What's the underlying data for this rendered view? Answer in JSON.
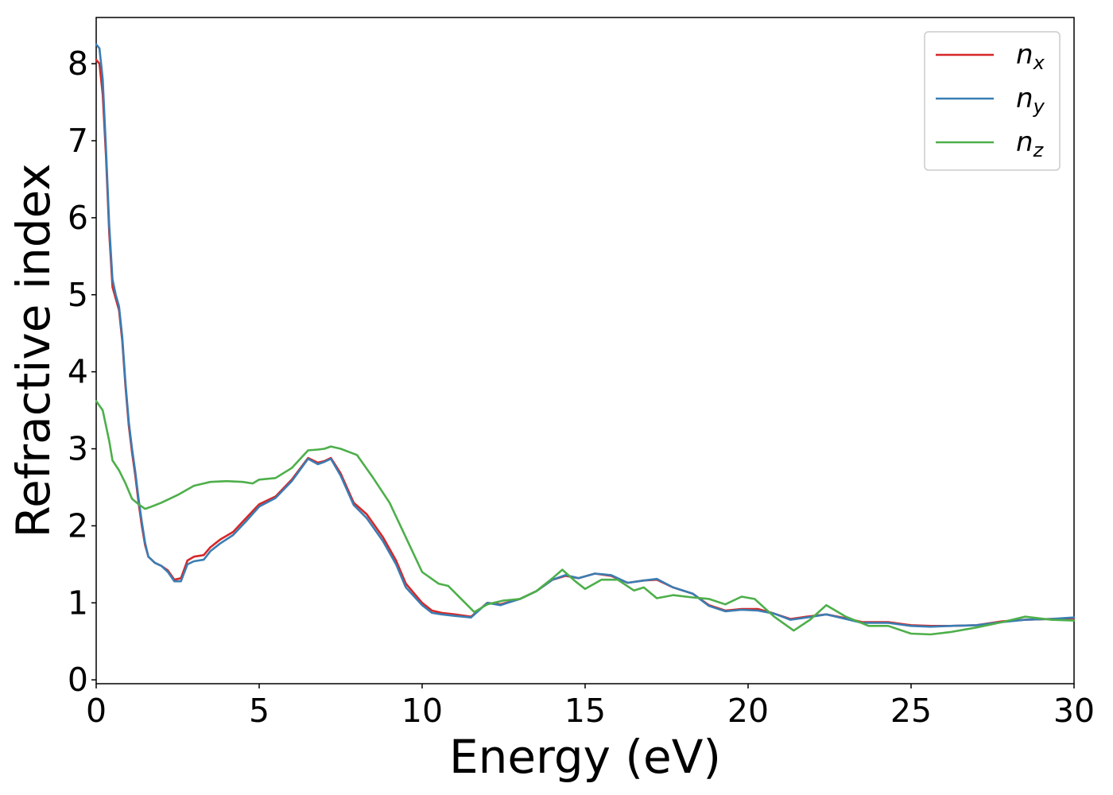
{
  "chart_data": {
    "type": "line",
    "title": "",
    "xlabel": "Energy (eV)",
    "ylabel": "Refractive index",
    "xlim": [
      0,
      30
    ],
    "ylim": [
      -0.05,
      8.6
    ],
    "xticks": [
      0,
      5,
      10,
      15,
      20,
      25,
      30
    ],
    "yticks": [
      0,
      1,
      2,
      3,
      4,
      5,
      6,
      7,
      8
    ],
    "grid": false,
    "legend_position": "top-right",
    "series": [
      {
        "name": "n",
        "subscript": "x",
        "color": "#d62728",
        "points": [
          [
            0,
            8.05
          ],
          [
            0.1,
            8.0
          ],
          [
            0.2,
            7.6
          ],
          [
            0.3,
            6.8
          ],
          [
            0.4,
            5.8
          ],
          [
            0.5,
            5.1
          ],
          [
            0.6,
            4.95
          ],
          [
            0.7,
            4.8
          ],
          [
            0.8,
            4.4
          ],
          [
            0.9,
            3.8
          ],
          [
            1.0,
            3.3
          ],
          [
            1.1,
            2.95
          ],
          [
            1.2,
            2.65
          ],
          [
            1.3,
            2.3
          ],
          [
            1.4,
            2.0
          ],
          [
            1.5,
            1.75
          ],
          [
            1.6,
            1.6
          ],
          [
            1.8,
            1.52
          ],
          [
            2.0,
            1.48
          ],
          [
            2.2,
            1.42
          ],
          [
            2.4,
            1.3
          ],
          [
            2.6,
            1.32
          ],
          [
            2.8,
            1.55
          ],
          [
            3.0,
            1.6
          ],
          [
            3.3,
            1.62
          ],
          [
            3.5,
            1.72
          ],
          [
            3.8,
            1.82
          ],
          [
            4.2,
            1.92
          ],
          [
            4.6,
            2.1
          ],
          [
            5.0,
            2.28
          ],
          [
            5.5,
            2.38
          ],
          [
            6.0,
            2.6
          ],
          [
            6.5,
            2.88
          ],
          [
            6.8,
            2.82
          ],
          [
            7.0,
            2.84
          ],
          [
            7.2,
            2.88
          ],
          [
            7.5,
            2.68
          ],
          [
            7.9,
            2.3
          ],
          [
            8.3,
            2.15
          ],
          [
            8.8,
            1.85
          ],
          [
            9.2,
            1.55
          ],
          [
            9.5,
            1.25
          ],
          [
            10.0,
            1.0
          ],
          [
            10.3,
            0.9
          ],
          [
            10.6,
            0.87
          ],
          [
            11.0,
            0.85
          ],
          [
            11.5,
            0.82
          ],
          [
            12.0,
            1.0
          ],
          [
            12.4,
            0.98
          ],
          [
            13.0,
            1.05
          ],
          [
            13.5,
            1.15
          ],
          [
            14.0,
            1.3
          ],
          [
            14.4,
            1.35
          ],
          [
            14.8,
            1.32
          ],
          [
            15.3,
            1.38
          ],
          [
            15.8,
            1.35
          ],
          [
            16.3,
            1.26
          ],
          [
            16.8,
            1.29
          ],
          [
            17.2,
            1.3
          ],
          [
            17.7,
            1.2
          ],
          [
            18.3,
            1.12
          ],
          [
            18.8,
            0.97
          ],
          [
            19.3,
            0.9
          ],
          [
            19.8,
            0.92
          ],
          [
            20.3,
            0.92
          ],
          [
            20.8,
            0.86
          ],
          [
            21.3,
            0.79
          ],
          [
            21.8,
            0.82
          ],
          [
            22.4,
            0.85
          ],
          [
            23.0,
            0.8
          ],
          [
            23.5,
            0.75
          ],
          [
            24.3,
            0.75
          ],
          [
            25.0,
            0.71
          ],
          [
            25.6,
            0.7
          ],
          [
            26.2,
            0.7
          ],
          [
            27.0,
            0.71
          ],
          [
            27.8,
            0.76
          ],
          [
            28.5,
            0.78
          ],
          [
            29.3,
            0.79
          ],
          [
            30.0,
            0.8
          ]
        ]
      },
      {
        "name": "n",
        "subscript": "y",
        "color": "#3a7db3",
        "points": [
          [
            0,
            8.25
          ],
          [
            0.1,
            8.2
          ],
          [
            0.2,
            7.8
          ],
          [
            0.3,
            6.9
          ],
          [
            0.4,
            5.9
          ],
          [
            0.5,
            5.2
          ],
          [
            0.6,
            5.0
          ],
          [
            0.7,
            4.85
          ],
          [
            0.8,
            4.45
          ],
          [
            0.9,
            3.85
          ],
          [
            1.0,
            3.35
          ],
          [
            1.1,
            3.0
          ],
          [
            1.2,
            2.7
          ],
          [
            1.3,
            2.35
          ],
          [
            1.4,
            2.05
          ],
          [
            1.5,
            1.78
          ],
          [
            1.6,
            1.6
          ],
          [
            1.8,
            1.52
          ],
          [
            2.0,
            1.48
          ],
          [
            2.2,
            1.4
          ],
          [
            2.4,
            1.28
          ],
          [
            2.6,
            1.28
          ],
          [
            2.8,
            1.5
          ],
          [
            3.0,
            1.54
          ],
          [
            3.3,
            1.56
          ],
          [
            3.5,
            1.67
          ],
          [
            3.8,
            1.77
          ],
          [
            4.2,
            1.88
          ],
          [
            4.6,
            2.06
          ],
          [
            5.0,
            2.25
          ],
          [
            5.5,
            2.36
          ],
          [
            6.0,
            2.58
          ],
          [
            6.5,
            2.87
          ],
          [
            6.8,
            2.8
          ],
          [
            7.0,
            2.83
          ],
          [
            7.2,
            2.87
          ],
          [
            7.5,
            2.65
          ],
          [
            7.9,
            2.27
          ],
          [
            8.3,
            2.1
          ],
          [
            8.8,
            1.8
          ],
          [
            9.2,
            1.5
          ],
          [
            9.5,
            1.2
          ],
          [
            10.0,
            0.97
          ],
          [
            10.3,
            0.87
          ],
          [
            10.6,
            0.85
          ],
          [
            11.0,
            0.83
          ],
          [
            11.5,
            0.81
          ],
          [
            12.0,
            1.0
          ],
          [
            12.4,
            0.97
          ],
          [
            13.0,
            1.05
          ],
          [
            13.5,
            1.15
          ],
          [
            14.0,
            1.3
          ],
          [
            14.4,
            1.36
          ],
          [
            14.8,
            1.32
          ],
          [
            15.3,
            1.38
          ],
          [
            15.8,
            1.36
          ],
          [
            16.3,
            1.26
          ],
          [
            16.8,
            1.29
          ],
          [
            17.2,
            1.31
          ],
          [
            17.7,
            1.2
          ],
          [
            18.3,
            1.12
          ],
          [
            18.8,
            0.96
          ],
          [
            19.3,
            0.89
          ],
          [
            19.8,
            0.91
          ],
          [
            20.3,
            0.9
          ],
          [
            20.8,
            0.86
          ],
          [
            21.3,
            0.78
          ],
          [
            21.8,
            0.81
          ],
          [
            22.4,
            0.85
          ],
          [
            23.0,
            0.79
          ],
          [
            23.5,
            0.74
          ],
          [
            24.3,
            0.74
          ],
          [
            25.0,
            0.7
          ],
          [
            25.6,
            0.69
          ],
          [
            26.2,
            0.7
          ],
          [
            27.0,
            0.71
          ],
          [
            27.8,
            0.75
          ],
          [
            28.5,
            0.78
          ],
          [
            29.3,
            0.79
          ],
          [
            30.0,
            0.81
          ]
        ]
      },
      {
        "name": "n",
        "subscript": "z",
        "color": "#4daf4a",
        "points": [
          [
            0,
            3.62
          ],
          [
            0.2,
            3.5
          ],
          [
            0.4,
            3.1
          ],
          [
            0.5,
            2.85
          ],
          [
            0.7,
            2.72
          ],
          [
            0.9,
            2.55
          ],
          [
            1.1,
            2.35
          ],
          [
            1.3,
            2.28
          ],
          [
            1.5,
            2.22
          ],
          [
            1.7,
            2.25
          ],
          [
            2.0,
            2.3
          ],
          [
            2.5,
            2.4
          ],
          [
            3.0,
            2.52
          ],
          [
            3.5,
            2.57
          ],
          [
            4.0,
            2.58
          ],
          [
            4.5,
            2.57
          ],
          [
            4.8,
            2.55
          ],
          [
            5.0,
            2.6
          ],
          [
            5.5,
            2.62
          ],
          [
            6.0,
            2.75
          ],
          [
            6.5,
            2.98
          ],
          [
            6.8,
            2.99
          ],
          [
            7.0,
            3.0
          ],
          [
            7.2,
            3.03
          ],
          [
            7.5,
            3.0
          ],
          [
            8.0,
            2.92
          ],
          [
            8.5,
            2.62
          ],
          [
            9.0,
            2.3
          ],
          [
            9.5,
            1.85
          ],
          [
            10.0,
            1.4
          ],
          [
            10.5,
            1.25
          ],
          [
            10.8,
            1.22
          ],
          [
            11.2,
            1.05
          ],
          [
            11.6,
            0.88
          ],
          [
            12.0,
            0.98
          ],
          [
            12.5,
            1.03
          ],
          [
            13.0,
            1.05
          ],
          [
            13.5,
            1.15
          ],
          [
            14.0,
            1.32
          ],
          [
            14.3,
            1.43
          ],
          [
            14.7,
            1.28
          ],
          [
            15.0,
            1.18
          ],
          [
            15.5,
            1.3
          ],
          [
            16.0,
            1.3
          ],
          [
            16.5,
            1.16
          ],
          [
            16.8,
            1.2
          ],
          [
            17.2,
            1.06
          ],
          [
            17.7,
            1.1
          ],
          [
            18.3,
            1.07
          ],
          [
            18.8,
            1.05
          ],
          [
            19.3,
            0.98
          ],
          [
            19.8,
            1.08
          ],
          [
            20.2,
            1.05
          ],
          [
            20.8,
            0.82
          ],
          [
            21.4,
            0.64
          ],
          [
            21.9,
            0.78
          ],
          [
            22.4,
            0.97
          ],
          [
            23.0,
            0.82
          ],
          [
            23.7,
            0.7
          ],
          [
            24.3,
            0.7
          ],
          [
            25.0,
            0.6
          ],
          [
            25.6,
            0.59
          ],
          [
            26.2,
            0.62
          ],
          [
            27.0,
            0.68
          ],
          [
            27.8,
            0.75
          ],
          [
            28.5,
            0.82
          ],
          [
            29.3,
            0.78
          ],
          [
            30.0,
            0.77
          ]
        ]
      }
    ]
  }
}
